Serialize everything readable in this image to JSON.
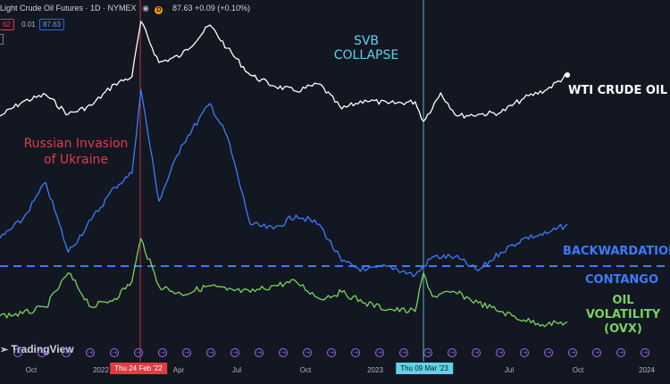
{
  "header": {
    "symbol": "Light Crude Oil Futures · 1D · NYMEX",
    "eye_icon": "eye-icon",
    "delay_badge": "D",
    "last_price": "87.63",
    "change": "+0.09 (+0.10%)"
  },
  "order_row": {
    "sell": "62",
    "spread": "0.01",
    "buy": "87.63"
  },
  "annotations": {
    "svb": [
      "SVB",
      "COLLAPSE"
    ],
    "russia": [
      "Russian Invasion",
      "of Ukraine"
    ]
  },
  "series_labels": {
    "wti": "WTI CRUDE OIL",
    "backwardation": "BACKWARDATION",
    "contango": "CONTANGO",
    "ovx": [
      "OIL",
      "VOLATILITY",
      "(OVX)"
    ]
  },
  "branding": "TradingView",
  "x_ticks": [
    "Oct",
    "2022",
    "Apr",
    "Jul",
    "Oct",
    "2023",
    "Apr",
    "Jul",
    "Oct",
    "2024"
  ],
  "date_tags": {
    "invasion": "Thu 24 Feb '22",
    "svb": "Thu 09 Mar '23"
  },
  "colors": {
    "background": "#131722",
    "wti": "#ffffff",
    "spread": "#3d7bff",
    "ovx": "#7bd35c",
    "invasion_line": "#e23b44",
    "svb_line": "#5fd3e8",
    "zero_line": "#3d7bff",
    "event_marker": "#9c6cf0"
  },
  "chart_data": {
    "type": "line",
    "title": "",
    "xlabel": "",
    "ylabel": "",
    "x_range": [
      "2021-09-01",
      "2024-01-31"
    ],
    "events": [
      {
        "date": "2022-02-24",
        "label": "Russian Invasion of Ukraine"
      },
      {
        "date": "2023-03-09",
        "label": "SVB COLLAPSE"
      }
    ],
    "series": [
      {
        "name": "WTI CRUDE OIL",
        "dates": [
          "2021-09-01",
          "2021-10-01",
          "2021-11-01",
          "2021-12-01",
          "2022-01-01",
          "2022-02-01",
          "2022-02-24",
          "2022-03-08",
          "2022-04-01",
          "2022-05-01",
          "2022-06-08",
          "2022-07-01",
          "2022-08-01",
          "2022-09-01",
          "2022-10-01",
          "2022-11-01",
          "2022-12-01",
          "2023-01-01",
          "2023-02-01",
          "2023-03-09",
          "2023-03-20",
          "2023-04-12",
          "2023-05-04",
          "2023-06-01",
          "2023-07-01",
          "2023-08-01",
          "2023-09-01",
          "2023-09-28"
        ],
        "values": [
          70,
          78,
          82,
          71,
          76,
          88,
          92,
          123,
          100,
          104,
          121,
          108,
          93,
          87,
          84,
          88,
          74,
          79,
          77,
          78,
          67,
          83,
          70,
          71,
          72,
          80,
          85,
          93
        ]
      },
      {
        "name": "BACKWARDATION",
        "dates": [
          "2021-09-01",
          "2021-10-01",
          "2021-11-01",
          "2021-12-01",
          "2022-01-01",
          "2022-02-01",
          "2022-02-24",
          "2022-03-08",
          "2022-04-01",
          "2022-05-01",
          "2022-06-08",
          "2022-07-01",
          "2022-08-01",
          "2022-09-01",
          "2022-10-01",
          "2022-11-01",
          "2022-12-01",
          "2023-01-01",
          "2023-02-01",
          "2023-03-09",
          "2023-04-01",
          "2023-05-01",
          "2023-06-01",
          "2023-07-01",
          "2023-08-01",
          "2023-09-01",
          "2023-09-28"
        ],
        "values": [
          0.3,
          0.5,
          0.9,
          0.15,
          0.5,
          0.85,
          1.0,
          1.9,
          0.7,
          1.3,
          1.75,
          1.4,
          0.45,
          0.4,
          0.55,
          0.45,
          0.05,
          -0.05,
          0.0,
          -0.1,
          0.1,
          0.1,
          -0.05,
          0.15,
          0.3,
          0.35,
          0.45
        ]
      },
      {
        "name": "OIL VOLATILITY (OVX)",
        "dates": [
          "2021-09-01",
          "2021-10-01",
          "2021-11-01",
          "2021-12-01",
          "2022-01-01",
          "2022-02-01",
          "2022-02-24",
          "2022-03-08",
          "2022-04-01",
          "2022-05-01",
          "2022-06-08",
          "2022-07-01",
          "2022-08-01",
          "2022-09-01",
          "2022-10-01",
          "2022-11-01",
          "2022-12-01",
          "2023-01-01",
          "2023-02-01",
          "2023-03-09",
          "2023-03-20",
          "2023-04-01",
          "2023-05-01",
          "2023-06-01",
          "2023-07-01",
          "2023-08-01",
          "2023-09-01",
          "2023-09-28"
        ],
        "values": [
          36,
          37,
          40,
          56,
          40,
          44,
          52,
          72,
          50,
          46,
          50,
          48,
          47,
          50,
          52,
          44,
          47,
          42,
          39,
          38,
          56,
          45,
          47,
          42,
          38,
          34,
          32,
          33
        ]
      }
    ]
  }
}
